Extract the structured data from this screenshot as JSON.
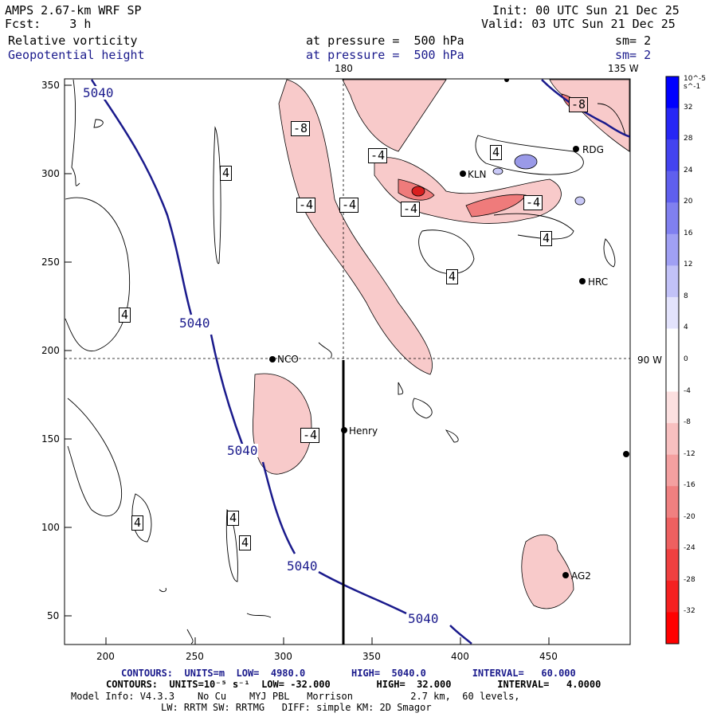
{
  "header": {
    "model_title": "AMPS 2.67-km WRF SP",
    "forecast": "Fcst:    3 h",
    "init": "Init: 00 UTC Sun 21 Dec 25",
    "valid": "Valid: 03 UTC Sun 21 Dec 25",
    "field1_name": "Relative vorticity",
    "field1_level": "at pressure =  500 hPa",
    "field1_sm": "sm= 2",
    "field2_name": "Geopotential height",
    "field2_level": "at pressure =  500 hPa",
    "field2_sm": "sm= 2"
  },
  "map": {
    "top_labels": [
      "180",
      "135 W"
    ],
    "right_label": "90 W",
    "x_ticks": [
      "200",
      "250",
      "300",
      "350",
      "400",
      "450"
    ],
    "y_ticks": [
      "350",
      "300",
      "250",
      "200",
      "150",
      "100",
      "50"
    ],
    "height_contour_labels": [
      "5040",
      "5040",
      "5040",
      "5040",
      "5040"
    ],
    "vorticity_labels": [
      "-8",
      "-4",
      "-4",
      "-4",
      "-4",
      "-4",
      "-4",
      "4",
      "4",
      "4",
      "4",
      "4",
      "4",
      "4",
      "4",
      "-8"
    ],
    "stations": [
      "NCO",
      "Henry",
      "KLN",
      "RDG",
      "HRC",
      "AG2"
    ]
  },
  "colorbar": {
    "unit": "10^-5 s^-1",
    "ticks": [
      "32",
      "28",
      "24",
      "20",
      "16",
      "12",
      "8",
      "4",
      "0",
      "-4",
      "-8",
      "-12",
      "-16",
      "-20",
      "-24",
      "-28",
      "-32"
    ],
    "colors_top_to_bottom": [
      "#0000ff",
      "#2626f5",
      "#4343f0",
      "#5f5fee",
      "#8080f0",
      "#a0a0f4",
      "#c2c2f8",
      "#e3e3fc",
      "#ffffff",
      "#ffffff",
      "#fce0e0",
      "#f8c0c0",
      "#f4a0a0",
      "#f08080",
      "#ee6060",
      "#f04040",
      "#f52020",
      "#ff0000"
    ]
  },
  "footer": {
    "line1": "CONTOURS:  UNITS=m  LOW=  4980.0        HIGH=  5040.0        INTERVAL=   60.000",
    "line2": "CONTOURS:  UNITS=10⁻⁵ s⁻¹  LOW= -32.000        HIGH=  32.000        INTERVAL=   4.0000",
    "line3": "Model Info: V4.3.3    No Cu    MYJ PBL   Morrison          2.7 km,  60 levels,",
    "line4": "LW: RRTM SW: RRTMG   DIFF: simple KM: 2D Smagor"
  }
}
